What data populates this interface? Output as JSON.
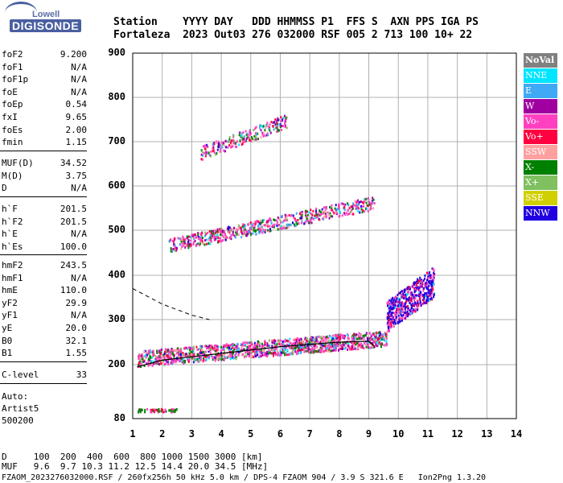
{
  "logo": {
    "top": "Lowell",
    "bottom": "DIGISONDE"
  },
  "header": {
    "line1": "Station    YYYY DAY   DDD HHMMSS P1  FFS S  AXN PPS IGA PS",
    "line2": "Fortaleza  2023 Out03 276 032000 RSF 005 2 713 100 10+ 22"
  },
  "params_group1": [
    {
      "label": "foF2",
      "value": "9.200"
    },
    {
      "label": "foF1",
      "value": "N/A"
    },
    {
      "label": "foF1p",
      "value": "N/A"
    },
    {
      "label": "foE",
      "value": "N/A"
    },
    {
      "label": "foEp",
      "value": "0.54"
    },
    {
      "label": "fxI",
      "value": "9.65"
    },
    {
      "label": "foEs",
      "value": "2.00"
    },
    {
      "label": "fmin",
      "value": "1.15"
    }
  ],
  "params_group2": [
    {
      "label": "MUF(D)",
      "value": "34.52"
    },
    {
      "label": "M(D)",
      "value": "3.75"
    },
    {
      "label": "D",
      "value": "N/A"
    }
  ],
  "params_group3": [
    {
      "label": "h`F",
      "value": "201.5"
    },
    {
      "label": "h`F2",
      "value": "201.5"
    },
    {
      "label": "h`E",
      "value": "N/A"
    },
    {
      "label": "h`Es",
      "value": "100.0"
    }
  ],
  "params_group4": [
    {
      "label": "hmF2",
      "value": "243.5"
    },
    {
      "label": "hmF1",
      "value": "N/A"
    },
    {
      "label": "hmE",
      "value": "110.0"
    },
    {
      "label": "yF2",
      "value": "29.9"
    },
    {
      "label": "yF1",
      "value": "N/A"
    },
    {
      "label": "yE",
      "value": "20.0"
    },
    {
      "label": "B0",
      "value": "32.1"
    },
    {
      "label": "B1",
      "value": "1.55"
    }
  ],
  "params_group5": [
    {
      "label": "C-level",
      "value": "33"
    }
  ],
  "auto": {
    "line1": "Auto:",
    "line2": "Artist5",
    "line3": "500200"
  },
  "legend": [
    {
      "label": "NoVal",
      "color": "#808080"
    },
    {
      "label": "NNE",
      "color": "#00e5ff"
    },
    {
      "label": "E",
      "color": "#3fa9f5"
    },
    {
      "label": "W",
      "color": "#a000a0"
    },
    {
      "label": "Vo-",
      "color": "#ff40c0"
    },
    {
      "label": "Vo+",
      "color": "#ff0040"
    },
    {
      "label": "SSW",
      "color": "#ffa0a0"
    },
    {
      "label": "X-",
      "color": "#008000"
    },
    {
      "label": "X+",
      "color": "#80c060"
    },
    {
      "label": "SSE",
      "color": "#d0d000"
    },
    {
      "label": "NNW",
      "color": "#2000e0"
    }
  ],
  "footer": {
    "line1": "D     100  200  400  600  800 1000 1500 3000 [km]",
    "line2": "MUF   9.6  9.7 10.3 11.2 12.5 14.4 20.0 34.5 [MHz]",
    "line3": "FZAOM_2023276032000.RSF / 260fx256h 50 kHz 5.0 km / DPS-4 FZAOM 904 / 3.9 S 321.6 E   Ion2Png 1.3.20"
  },
  "chart_data": {
    "type": "scatter",
    "title": "",
    "xlabel": "",
    "ylabel": "",
    "xlim": [
      1,
      14
    ],
    "ylim": [
      80,
      900
    ],
    "x_ticks": [
      1,
      2,
      3,
      4,
      5,
      6,
      7,
      8,
      9,
      10,
      11,
      12,
      13,
      14
    ],
    "y_ticks": [
      80,
      200,
      300,
      400,
      500,
      600,
      700,
      800,
      900
    ],
    "grid": true,
    "trace_profile": [
      [
        1.15,
        195
      ],
      [
        2,
        210
      ],
      [
        4,
        225
      ],
      [
        6,
        240
      ],
      [
        8,
        250
      ],
      [
        9,
        252
      ],
      [
        9.2,
        240
      ]
    ],
    "dashed_extrapolation": [
      [
        1,
        370
      ],
      [
        2,
        335
      ],
      [
        3,
        310
      ],
      [
        3.6,
        300
      ]
    ],
    "es_layer": {
      "x": [
        1.15,
        2.5
      ],
      "y": 100
    },
    "echo_bands": [
      {
        "name": "F2 first hop",
        "x": [
          1.15,
          9.6
        ],
        "y": [
          200,
          300
        ]
      },
      {
        "name": "F2 high",
        "x": [
          9.6,
          11.2
        ],
        "y": [
          270,
          400
        ]
      },
      {
        "name": "second hop",
        "x": [
          2.2,
          9.2
        ],
        "y": [
          420,
          580
        ]
      },
      {
        "name": "third hop",
        "x": [
          3.3,
          6.2
        ],
        "y": [
          640,
          760
        ]
      }
    ]
  }
}
